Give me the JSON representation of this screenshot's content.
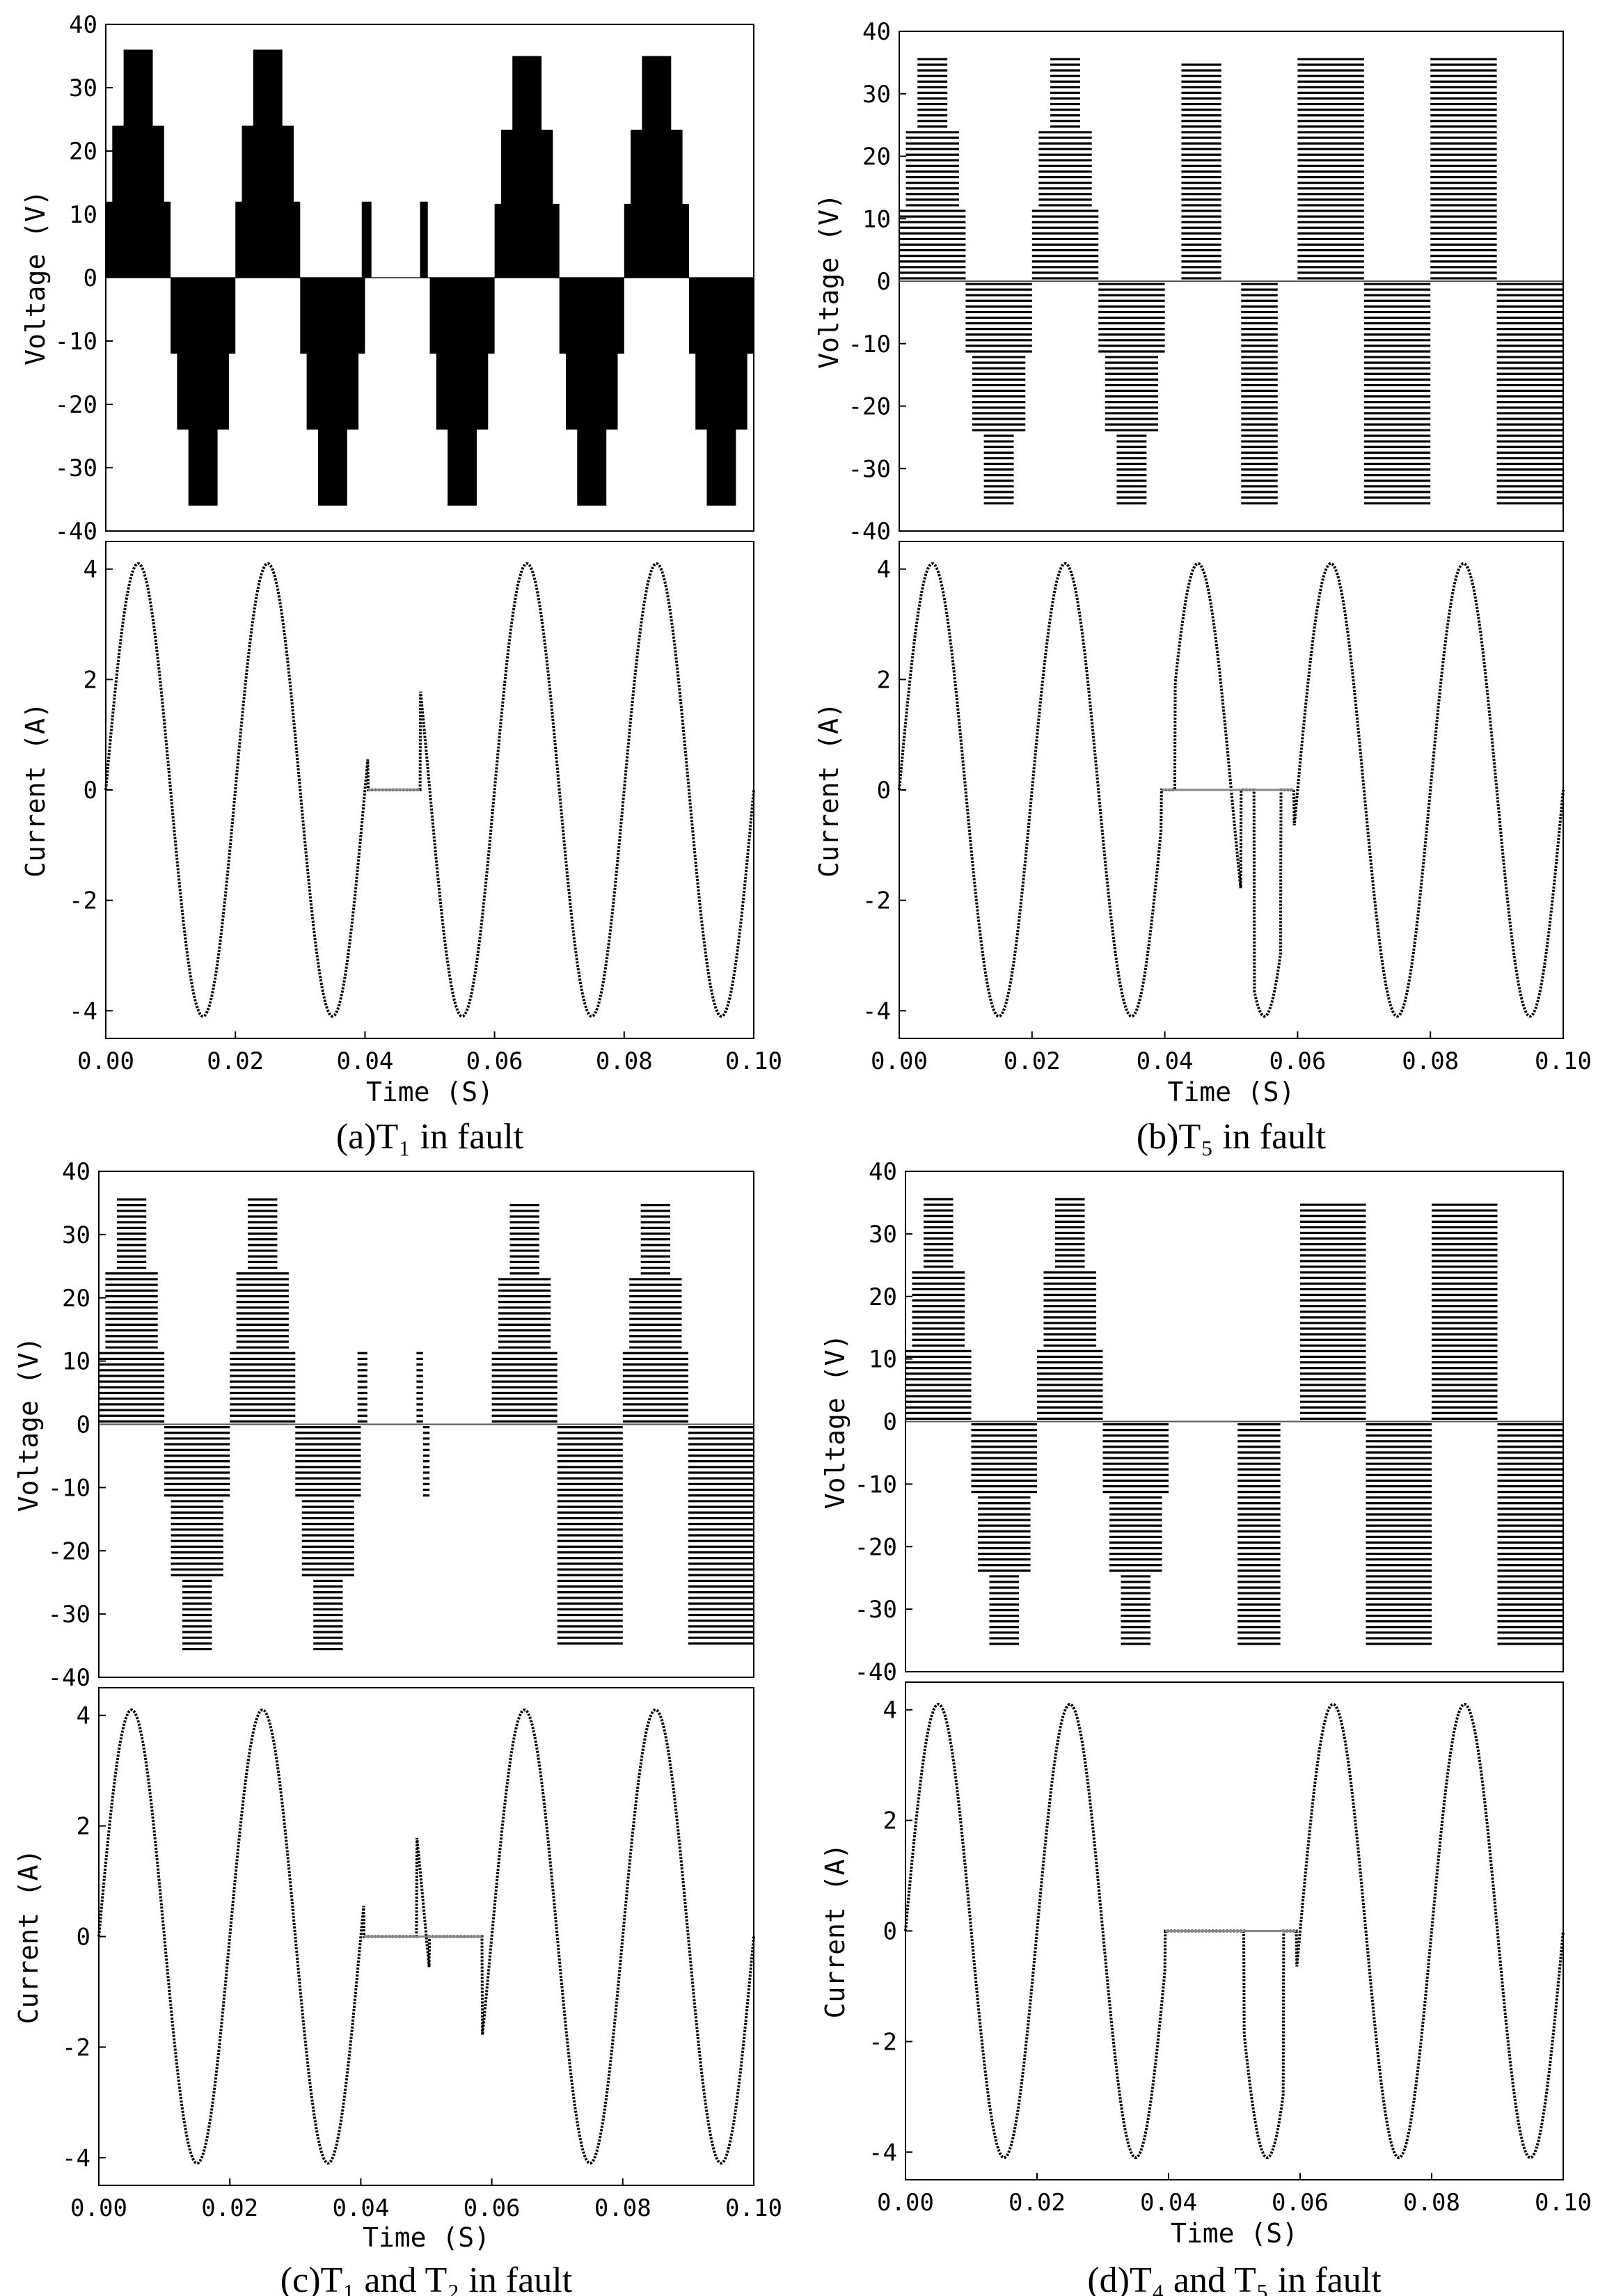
{
  "chart_data": [
    {
      "id": "a",
      "type": "line",
      "caption": "(a)T₁ in fault",
      "xlabel": "Time (S)",
      "xlim": [
        0,
        0.1
      ],
      "x_ticks": [
        "0.00",
        "0.02",
        "0.04",
        "0.06",
        "0.08",
        "0.10"
      ],
      "voltage": {
        "ylabel": "Voltage (V)",
        "ylim": [
          -40,
          40
        ],
        "y_ticks": [
          "40",
          "30",
          "20",
          "10",
          "0",
          "-10",
          "-20",
          "-30",
          "-40"
        ],
        "style": "solid",
        "segments": [
          {
            "t0": 0.0,
            "t1": 0.01,
            "sign": 1,
            "peak": 36
          },
          {
            "t0": 0.01,
            "t1": 0.02,
            "sign": -1,
            "peak": 36
          },
          {
            "t0": 0.02,
            "t1": 0.03,
            "sign": 1,
            "peak": 36
          },
          {
            "t0": 0.03,
            "t1": 0.04,
            "sign": -1,
            "peak": 36
          },
          {
            "t0": 0.0395,
            "t1": 0.041,
            "sign": 1,
            "peak": 12
          },
          {
            "t0": 0.0485,
            "t1": 0.0497,
            "sign": 1,
            "peak": 12
          },
          {
            "t0": 0.05,
            "t1": 0.06,
            "sign": -1,
            "peak": 36
          },
          {
            "t0": 0.06,
            "t1": 0.07,
            "sign": 1,
            "peak": 35
          },
          {
            "t0": 0.07,
            "t1": 0.08,
            "sign": -1,
            "peak": 36
          },
          {
            "t0": 0.08,
            "t1": 0.09,
            "sign": 1,
            "peak": 35
          },
          {
            "t0": 0.09,
            "t1": 0.1,
            "sign": -1,
            "peak": 36
          }
        ]
      },
      "current": {
        "ylabel": "Current (A)",
        "ylim": [
          -4.5,
          4.5
        ],
        "y_ticks": [
          "4",
          "2",
          "0",
          "-2",
          "-4"
        ],
        "amplitude": 4.1,
        "frequency_hz": 50,
        "zero_intervals": [
          [
            0.0405,
            0.0485
          ]
        ]
      }
    },
    {
      "id": "b",
      "type": "line",
      "caption": "(b)T₅ in fault",
      "xlabel": "Time (S)",
      "xlim": [
        0,
        0.1
      ],
      "x_ticks": [
        "0.00",
        "0.02",
        "0.04",
        "0.06",
        "0.08",
        "0.10"
      ],
      "voltage": {
        "ylabel": "Voltage (V)",
        "ylim": [
          -40,
          40
        ],
        "y_ticks": [
          "40",
          "30",
          "20",
          "10",
          "0",
          "-10",
          "-20",
          "-30",
          "-40"
        ],
        "style": "hatched",
        "segments": [
          {
            "t0": 0.0,
            "t1": 0.01,
            "sign": 1,
            "peak": 36
          },
          {
            "t0": 0.01,
            "t1": 0.02,
            "sign": -1,
            "peak": 36
          },
          {
            "t0": 0.02,
            "t1": 0.03,
            "sign": 1,
            "peak": 36
          },
          {
            "t0": 0.03,
            "t1": 0.04,
            "sign": -1,
            "peak": 36
          },
          {
            "t0": 0.0425,
            "t1": 0.0485,
            "sign": 1,
            "peak": 35,
            "flat": true
          },
          {
            "t0": 0.0515,
            "t1": 0.057,
            "sign": -1,
            "peak": 36,
            "flat": true
          },
          {
            "t0": 0.06,
            "t1": 0.07,
            "sign": 1,
            "peak": 36,
            "flat": true
          },
          {
            "t0": 0.07,
            "t1": 0.08,
            "sign": -1,
            "peak": 36,
            "flat": true
          },
          {
            "t0": 0.08,
            "t1": 0.09,
            "sign": 1,
            "peak": 36,
            "flat": true
          },
          {
            "t0": 0.09,
            "t1": 0.1,
            "sign": -1,
            "peak": 36,
            "flat": true
          }
        ]
      },
      "current": {
        "ylabel": "Current (A)",
        "ylim": [
          -4.5,
          4.5
        ],
        "y_ticks": [
          "4",
          "2",
          "0",
          "-2",
          "-4"
        ],
        "amplitude": 4.1,
        "frequency_hz": 50,
        "zero_intervals": [
          [
            0.0395,
            0.0415
          ],
          [
            0.0515,
            0.0535
          ],
          [
            0.0575,
            0.0595
          ]
        ]
      }
    },
    {
      "id": "c",
      "type": "line",
      "caption": "(c)T₁ and T₂ in fault",
      "xlabel": "Time (S)",
      "xlim": [
        0,
        0.1
      ],
      "x_ticks": [
        "0.00",
        "0.02",
        "0.04",
        "0.06",
        "0.08",
        "0.10"
      ],
      "voltage": {
        "ylabel": "Voltage (V)",
        "ylim": [
          -40,
          40
        ],
        "y_ticks": [
          "40",
          "30",
          "20",
          "10",
          "0",
          "-10",
          "-20",
          "-30",
          "-40"
        ],
        "style": "hatched",
        "segments": [
          {
            "t0": 0.0,
            "t1": 0.01,
            "sign": 1,
            "peak": 36
          },
          {
            "t0": 0.01,
            "t1": 0.02,
            "sign": -1,
            "peak": 36
          },
          {
            "t0": 0.02,
            "t1": 0.03,
            "sign": 1,
            "peak": 36
          },
          {
            "t0": 0.03,
            "t1": 0.04,
            "sign": -1,
            "peak": 36
          },
          {
            "t0": 0.0395,
            "t1": 0.041,
            "sign": 1,
            "peak": 12
          },
          {
            "t0": 0.0485,
            "t1": 0.0495,
            "sign": 1,
            "peak": 12
          },
          {
            "t0": 0.0495,
            "t1": 0.0505,
            "sign": -1,
            "peak": 12
          },
          {
            "t0": 0.06,
            "t1": 0.07,
            "sign": 1,
            "peak": 35
          },
          {
            "t0": 0.07,
            "t1": 0.08,
            "sign": -1,
            "peak": 35,
            "flat": true
          },
          {
            "t0": 0.08,
            "t1": 0.09,
            "sign": 1,
            "peak": 35
          },
          {
            "t0": 0.09,
            "t1": 0.1,
            "sign": -1,
            "peak": 35,
            "flat": true
          }
        ]
      },
      "current": {
        "ylabel": "Current (A)",
        "ylim": [
          -4.5,
          4.5
        ],
        "y_ticks": [
          "4",
          "2",
          "0",
          "-2",
          "-4"
        ],
        "amplitude": 4.1,
        "frequency_hz": 50,
        "zero_intervals": [
          [
            0.0405,
            0.0485
          ],
          [
            0.0505,
            0.0585
          ]
        ]
      }
    },
    {
      "id": "d",
      "type": "line",
      "caption": "(d)T₄ and T₅ in fault",
      "xlabel": "Time (S)",
      "xlim": [
        0,
        0.1
      ],
      "x_ticks": [
        "0.00",
        "0.02",
        "0.04",
        "0.06",
        "0.08",
        "0.10"
      ],
      "voltage": {
        "ylabel": "Voltage (V)",
        "ylim": [
          -40,
          40
        ],
        "y_ticks": [
          "40",
          "30",
          "20",
          "10",
          "0",
          "-10",
          "-20",
          "-30",
          "-40"
        ],
        "style": "hatched",
        "segments": [
          {
            "t0": 0.0,
            "t1": 0.01,
            "sign": 1,
            "peak": 36
          },
          {
            "t0": 0.01,
            "t1": 0.02,
            "sign": -1,
            "peak": 36
          },
          {
            "t0": 0.02,
            "t1": 0.03,
            "sign": 1,
            "peak": 36
          },
          {
            "t0": 0.03,
            "t1": 0.04,
            "sign": -1,
            "peak": 36
          },
          {
            "t0": 0.0505,
            "t1": 0.057,
            "sign": -1,
            "peak": 36,
            "flat": true
          },
          {
            "t0": 0.06,
            "t1": 0.07,
            "sign": 1,
            "peak": 35,
            "flat": true
          },
          {
            "t0": 0.07,
            "t1": 0.08,
            "sign": -1,
            "peak": 36,
            "flat": true
          },
          {
            "t0": 0.08,
            "t1": 0.09,
            "sign": 1,
            "peak": 35,
            "flat": true
          },
          {
            "t0": 0.09,
            "t1": 0.1,
            "sign": -1,
            "peak": 36,
            "flat": true
          }
        ]
      },
      "current": {
        "ylabel": "Current (A)",
        "ylim": [
          -4.5,
          4.5
        ],
        "y_ticks": [
          "4",
          "2",
          "0",
          "-2",
          "-4"
        ],
        "amplitude": 4.1,
        "frequency_hz": 50,
        "zero_intervals": [
          [
            0.0395,
            0.0515
          ],
          [
            0.0575,
            0.0595
          ]
        ]
      }
    }
  ]
}
